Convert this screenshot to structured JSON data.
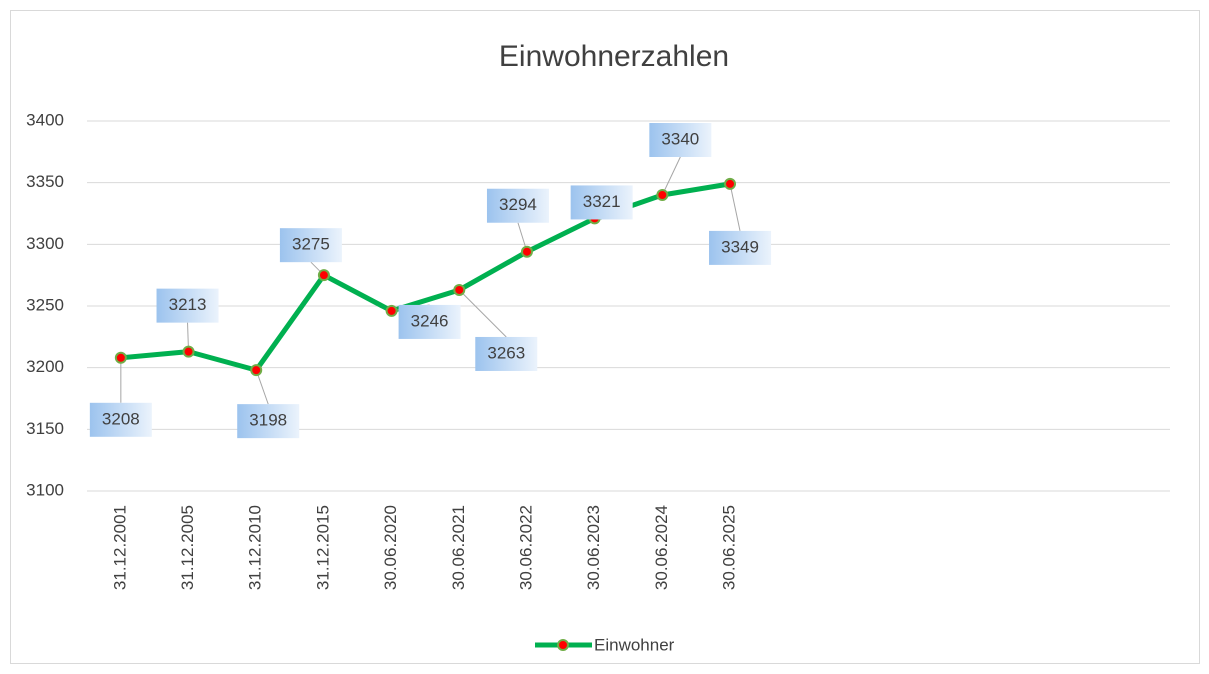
{
  "chart_data": {
    "type": "line",
    "title": "Einwohnerzahlen",
    "categories": [
      "31.12.2001",
      "31.12.2005",
      "31.12.2010",
      "31.12.2015",
      "30.06.2020",
      "30.06.2021",
      "30.06.2022",
      "30.06.2023",
      "30.06.2024",
      "30.06.2025",
      null,
      null,
      null,
      null,
      null,
      null
    ],
    "series": [
      {
        "name": "Einwohner",
        "color": "#00b050",
        "marker_color": "#ff0000",
        "values": [
          3208,
          3213,
          3198,
          3275,
          3246,
          3263,
          3294,
          3321,
          3340,
          3349,
          null,
          null,
          null,
          null,
          null,
          null
        ]
      }
    ],
    "ylim": [
      3100,
      3400
    ],
    "yticks": [
      3100,
      3150,
      3200,
      3250,
      3300,
      3350,
      3400
    ],
    "grid": true,
    "legend": "bottom"
  }
}
